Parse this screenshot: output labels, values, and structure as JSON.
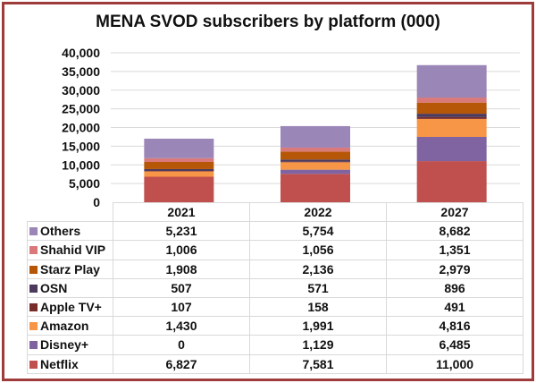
{
  "chart_data": {
    "type": "bar",
    "stacked": true,
    "title": "MENA SVOD subscribers by platform (000)",
    "categories": [
      "2021",
      "2022",
      "2027"
    ],
    "ylim": [
      0,
      40000
    ],
    "yticks": [
      "0",
      "5,000",
      "10,000",
      "15,000",
      "20,000",
      "25,000",
      "30,000",
      "35,000",
      "40,000"
    ],
    "ytick_values": [
      0,
      5000,
      10000,
      15000,
      20000,
      25000,
      30000,
      35000,
      40000
    ],
    "grid": true,
    "legend": "data-table",
    "series": [
      {
        "name": "Netflix",
        "color": "#c0504d",
        "values": [
          6827,
          7581,
          11000
        ],
        "labels": [
          "6,827",
          "7,581",
          "11,000"
        ]
      },
      {
        "name": "Disney+",
        "color": "#8064a2",
        "values": [
          0,
          1129,
          6485
        ],
        "labels": [
          "0",
          "1,129",
          "6,485"
        ]
      },
      {
        "name": "Amazon",
        "color": "#f79646",
        "values": [
          1430,
          1991,
          4816
        ],
        "labels": [
          "1,430",
          "1,991",
          "4,816"
        ]
      },
      {
        "name": "Apple TV+",
        "color": "#772c2a",
        "values": [
          107,
          158,
          491
        ],
        "labels": [
          "107",
          "158",
          "491"
        ]
      },
      {
        "name": "OSN",
        "color": "#4b3a5e",
        "values": [
          507,
          571,
          896
        ],
        "labels": [
          "507",
          "571",
          "896"
        ]
      },
      {
        "name": "Starz Play",
        "color": "#b65708",
        "values": [
          1908,
          2136,
          2979
        ],
        "labels": [
          "1,908",
          "2,136",
          "2,979"
        ]
      },
      {
        "name": "Shahid VIP",
        "color": "#d9797a",
        "values": [
          1006,
          1056,
          1351
        ],
        "labels": [
          "1,006",
          "1,056",
          "1,351"
        ]
      },
      {
        "name": "Others",
        "color": "#9b86b8",
        "values": [
          5231,
          5754,
          8682
        ],
        "labels": [
          "5,231",
          "5,754",
          "8,682"
        ]
      }
    ]
  }
}
